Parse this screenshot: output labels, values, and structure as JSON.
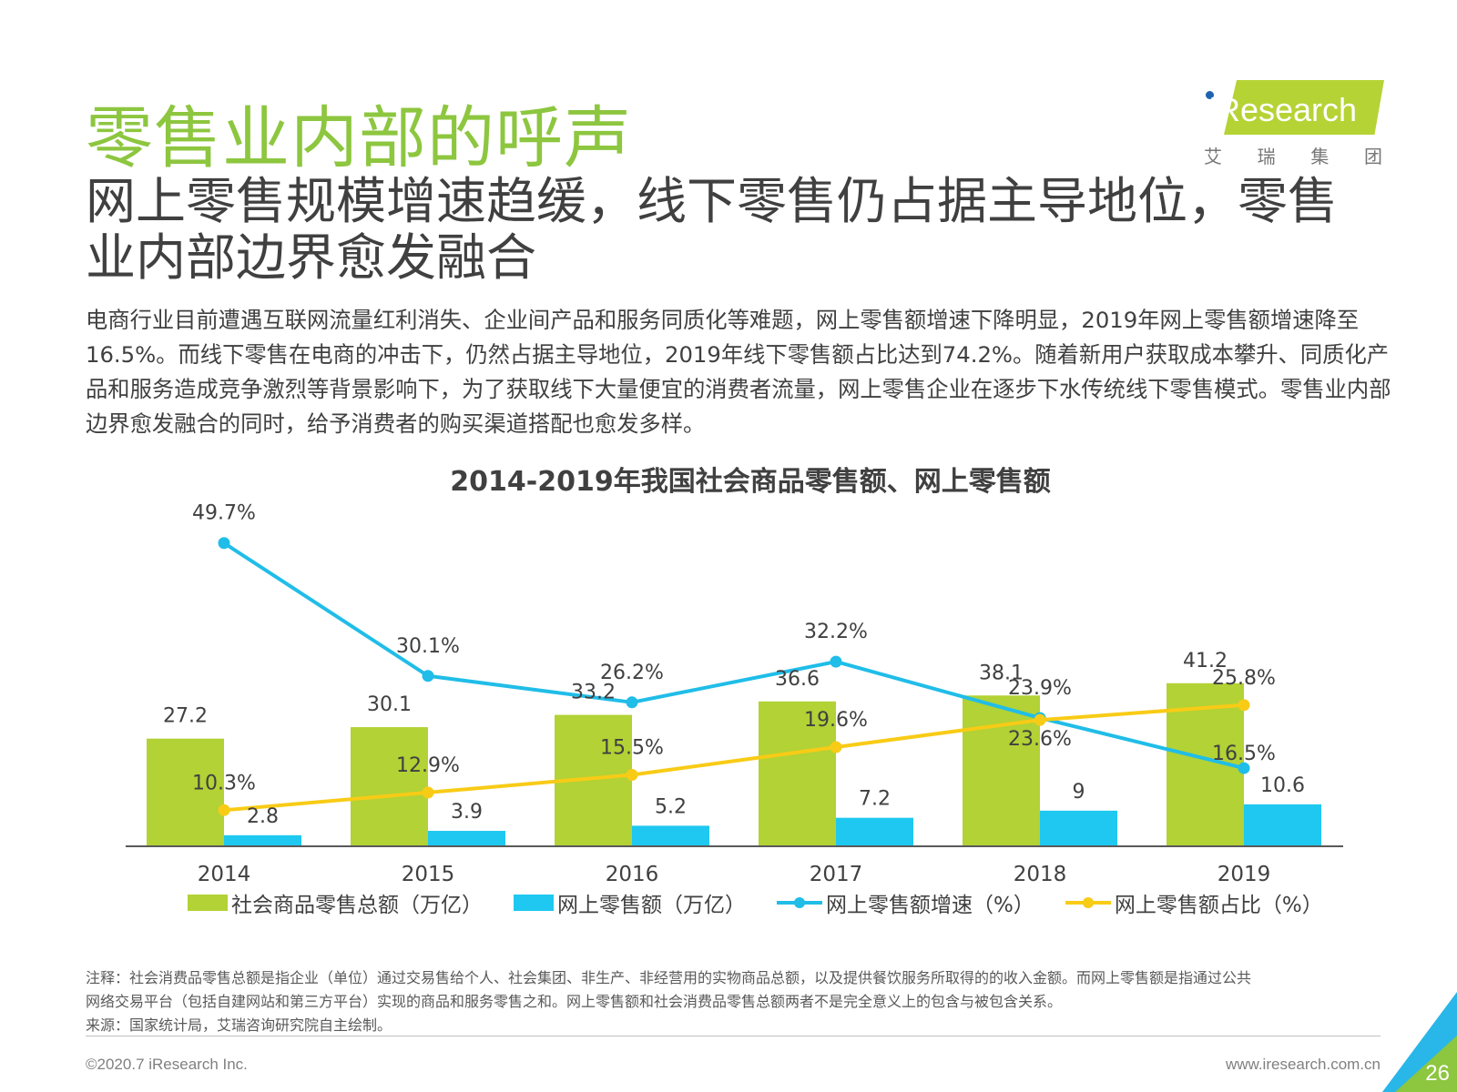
{
  "section_title": "零售业内部的呼声",
  "logo": {
    "word": "iResearch",
    "sub": [
      "艾",
      "瑞",
      "集",
      "团"
    ]
  },
  "headline": "网上零售规模增速趋缓，线下零售仍占据主导地位，零售业内部边界愈发融合",
  "summary": "电商行业目前遭遇互联网流量红利消失、企业间产品和服务同质化等难题，网上零售额增速下降明显，2019年网上零售额增速降至16.5%。而线下零售在电商的冲击下，仍然占据主导地位，2019年线下零售额占比达到74.2%。随着新用户获取成本攀升、同质化产品和服务造成竞争激烈等背景影响下，为了获取线下大量便宜的消费者流量，网上零售企业在逐步下水传统线下零售模式。零售业内部边界愈发融合的同时，给予消费者的购买渠道搭配也愈发多样。",
  "chart_data": {
    "type": "bar",
    "title": "2014-2019年我国社会商品零售额、网上零售额",
    "categories": [
      "2014",
      "2015",
      "2016",
      "2017",
      "2018",
      "2019"
    ],
    "series": [
      {
        "name": "社会商品零售总额（万亿）",
        "kind": "bar",
        "color": "#b2d235",
        "values": [
          27.2,
          30.1,
          33.2,
          36.6,
          38.1,
          41.2
        ],
        "labels": [
          "27.2",
          "30.1",
          "33.2",
          "36.6",
          "38.1",
          "41.2"
        ]
      },
      {
        "name": "网上零售额（万亿）",
        "kind": "bar",
        "color": "#1ec8f0",
        "values": [
          2.8,
          3.9,
          5.2,
          7.2,
          9,
          10.6
        ],
        "labels": [
          "2.8",
          "3.9",
          "5.2",
          "7.2",
          "9",
          "10.6"
        ]
      },
      {
        "name": "网上零售额增速（%）",
        "kind": "line",
        "color": "#20bde8",
        "values": [
          49.7,
          30.1,
          26.2,
          32.2,
          23.9,
          16.5
        ],
        "labels": [
          "49.7%",
          "30.1%",
          "26.2%",
          "32.2%",
          "23.9%",
          "16.5%"
        ]
      },
      {
        "name": "网上零售额占比（%）",
        "kind": "line",
        "color": "#f8cb16",
        "values": [
          10.3,
          12.9,
          15.5,
          19.6,
          23.6,
          25.8
        ],
        "labels": [
          "10.3%",
          "12.9%",
          "15.5%",
          "19.6%",
          "23.6%",
          "25.8%"
        ]
      }
    ],
    "legend_position": "bottom",
    "grid": false
  },
  "note": {
    "lines": [
      "注释：社会消费品零售总额是指企业（单位）通过交易售给个人、社会集团、非生产、非经营用的实物商品总额，以及提供餐饮服务所取得的的收入金额。而网上零售额是指通过公共",
      "网络交易平台（包括自建网站和第三方平台）实现的商品和服务零售之和。网上零售额和社会消费品零售总额两者不是完全意义上的包含与被包含关系。",
      "来源：国家统计局，艾瑞咨询研究院自主绘制。"
    ]
  },
  "footer": {
    "copyright": "©2020.7 iResearch Inc.",
    "website": "www.iresearch.com.cn",
    "page": "26"
  },
  "colors": {
    "title_green": "#8dc63f",
    "logo_green": "#b5d334",
    "corner_blue": "#29b6e8"
  }
}
